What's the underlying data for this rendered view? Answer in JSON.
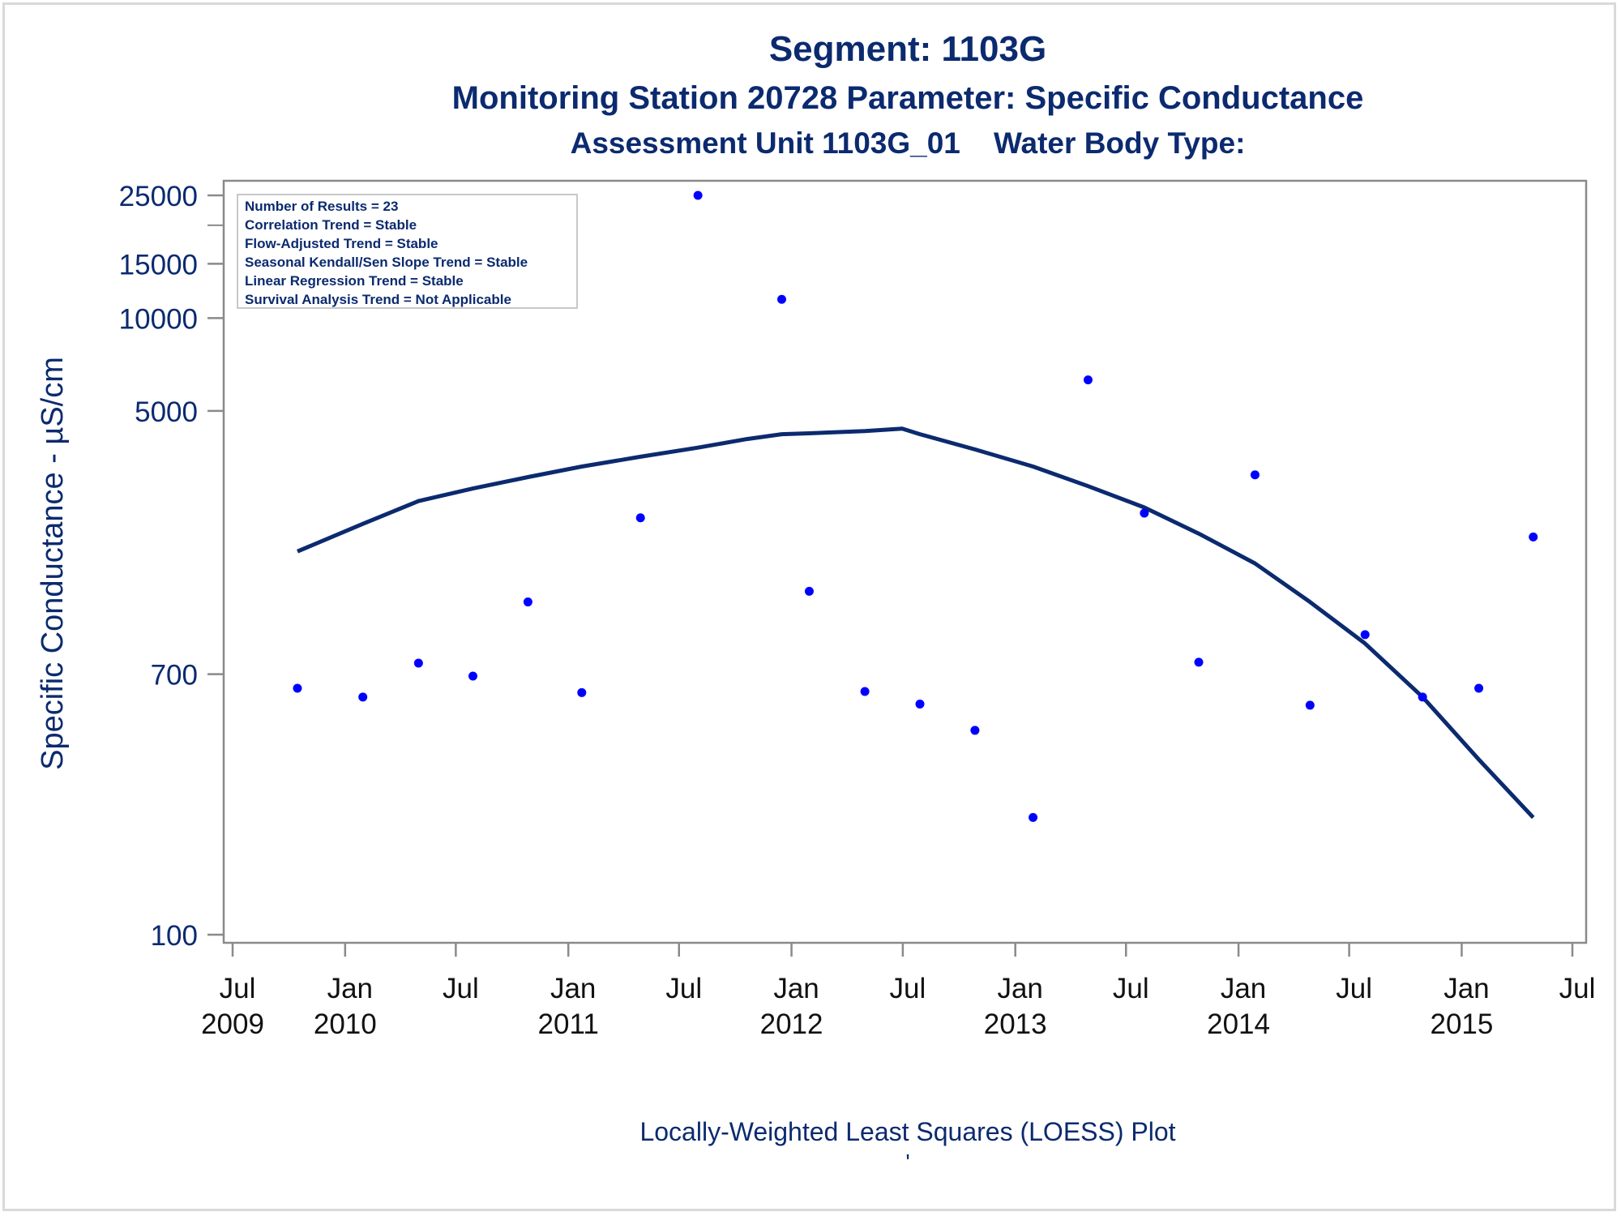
{
  "titles": {
    "line1": "Segment: 1103G",
    "line2": "Monitoring Station 20728 Parameter: Specific Conductance",
    "line3": "Assessment Unit 1103G_01    Water Body Type:"
  },
  "footnote": "Locally-Weighted Least Squares (LOESS) Plot",
  "footnote2": "'",
  "stats_box": [
    "Number of Results = 23",
    "Correlation Trend = Stable",
    "Flow-Adjusted Trend = Stable",
    "Seasonal Kendall/Sen Slope Trend = Stable",
    "Linear Regression Trend = Stable",
    "Survival Analysis Trend = Not Applicable"
  ],
  "colors": {
    "points": "#0000ff",
    "loess_line": "#0b2a6f",
    "text": "#0b2a6f",
    "axis": "#8a8a8a"
  },
  "chart_data": {
    "type": "scatter",
    "ylabel": "Specific Conductance -  µS/cm",
    "y_scale": "log",
    "ylim": [
      100,
      25000
    ],
    "y_ticks": [
      100,
      700,
      5000,
      10000,
      15000,
      25000
    ],
    "y_minor_ticks": [
      20000
    ],
    "xlim": [
      "2009-07-01",
      "2015-07-01"
    ],
    "x_ticks": [
      {
        "date": "2009-07-01",
        "label": [
          "Jul",
          "2009"
        ]
      },
      {
        "date": "2010-01-01",
        "label": [
          "Jan",
          "2010"
        ]
      },
      {
        "date": "2010-07-01",
        "label": [
          "Jul",
          ""
        ]
      },
      {
        "date": "2011-01-01",
        "label": [
          "Jan",
          "2011"
        ]
      },
      {
        "date": "2011-07-01",
        "label": [
          "Jul",
          ""
        ]
      },
      {
        "date": "2012-01-01",
        "label": [
          "Jan",
          "2012"
        ]
      },
      {
        "date": "2012-07-01",
        "label": [
          "Jul",
          ""
        ]
      },
      {
        "date": "2013-01-01",
        "label": [
          "Jan",
          "2013"
        ]
      },
      {
        "date": "2013-07-01",
        "label": [
          "Jul",
          ""
        ]
      },
      {
        "date": "2014-01-01",
        "label": [
          "Jan",
          "2014"
        ]
      },
      {
        "date": "2014-07-01",
        "label": [
          "Jul",
          ""
        ]
      },
      {
        "date": "2015-01-01",
        "label": [
          "Jan",
          "2015"
        ]
      },
      {
        "date": "2015-07-01",
        "label": [
          "Jul",
          ""
        ]
      }
    ],
    "series": [
      {
        "kind": "points",
        "points": [
          {
            "x": "2009-10-15",
            "y": 630
          },
          {
            "x": "2010-01-30",
            "y": 590
          },
          {
            "x": "2010-05-01",
            "y": 760
          },
          {
            "x": "2010-07-29",
            "y": 690
          },
          {
            "x": "2010-10-27",
            "y": 1200
          },
          {
            "x": "2011-01-23",
            "y": 610
          },
          {
            "x": "2011-04-29",
            "y": 2250
          },
          {
            "x": "2011-08-01",
            "y": 25000
          },
          {
            "x": "2011-12-16",
            "y": 11500
          },
          {
            "x": "2012-01-30",
            "y": 1300
          },
          {
            "x": "2012-04-30",
            "y": 615
          },
          {
            "x": "2012-07-29",
            "y": 560
          },
          {
            "x": "2012-10-27",
            "y": 460
          },
          {
            "x": "2013-01-30",
            "y": 240
          },
          {
            "x": "2013-04-30",
            "y": 6300
          },
          {
            "x": "2013-07-31",
            "y": 2330
          },
          {
            "x": "2013-10-28",
            "y": 765
          },
          {
            "x": "2014-01-28",
            "y": 3100
          },
          {
            "x": "2014-04-28",
            "y": 555
          },
          {
            "x": "2014-07-27",
            "y": 940
          },
          {
            "x": "2014-10-29",
            "y": 590
          },
          {
            "x": "2015-01-29",
            "y": 630
          },
          {
            "x": "2015-04-28",
            "y": 1950
          }
        ]
      },
      {
        "kind": "loess_line",
        "points": [
          {
            "x": "2009-10-15",
            "y": 1750
          },
          {
            "x": "2010-01-30",
            "y": 2150
          },
          {
            "x": "2010-05-01",
            "y": 2550
          },
          {
            "x": "2010-07-29",
            "y": 2800
          },
          {
            "x": "2010-10-27",
            "y": 3050
          },
          {
            "x": "2011-01-23",
            "y": 3300
          },
          {
            "x": "2011-04-29",
            "y": 3550
          },
          {
            "x": "2011-08-01",
            "y": 3800
          },
          {
            "x": "2011-10-20",
            "y": 4050
          },
          {
            "x": "2011-12-16",
            "y": 4200
          },
          {
            "x": "2012-01-30",
            "y": 4230
          },
          {
            "x": "2012-04-30",
            "y": 4300
          },
          {
            "x": "2012-06-30",
            "y": 4380
          },
          {
            "x": "2012-07-29",
            "y": 4200
          },
          {
            "x": "2012-10-27",
            "y": 3750
          },
          {
            "x": "2013-01-30",
            "y": 3300
          },
          {
            "x": "2013-04-30",
            "y": 2850
          },
          {
            "x": "2013-07-31",
            "y": 2430
          },
          {
            "x": "2013-10-28",
            "y": 2000
          },
          {
            "x": "2014-01-28",
            "y": 1600
          },
          {
            "x": "2014-04-28",
            "y": 1200
          },
          {
            "x": "2014-07-27",
            "y": 880
          },
          {
            "x": "2014-10-29",
            "y": 590
          },
          {
            "x": "2015-01-29",
            "y": 370
          },
          {
            "x": "2015-04-28",
            "y": 240
          }
        ]
      }
    ]
  }
}
